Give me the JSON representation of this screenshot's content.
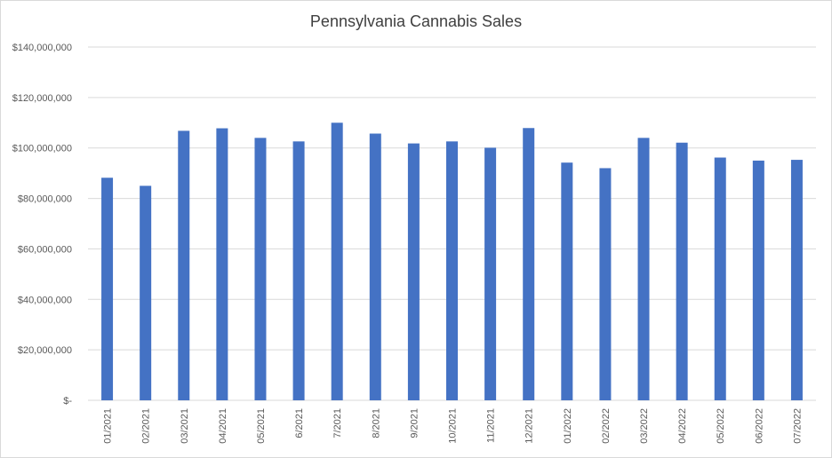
{
  "chart_data": {
    "type": "bar",
    "title": "Pennsylvania Cannabis Sales",
    "xlabel": "",
    "ylabel": "",
    "categories": [
      "01/2021",
      "02/2021",
      "03/2021",
      "04/2021",
      "05/2021",
      "6/2021",
      "7/2021",
      "8/2021",
      "9/2021",
      "10/2021",
      "11/2021",
      "12/2021",
      "01/2022",
      "02/2022",
      "03/2022",
      "04/2022",
      "05/2022",
      "06/2022",
      "07/2022"
    ],
    "values": [
      88200000,
      85000000,
      106800000,
      107800000,
      104000000,
      102600000,
      110000000,
      105700000,
      101800000,
      102600000,
      100100000,
      107900000,
      94200000,
      92000000,
      104000000,
      102100000,
      96200000,
      95000000,
      95300000
    ],
    "ylim": [
      0,
      140000000
    ],
    "yticks": [
      0,
      20000000,
      40000000,
      60000000,
      80000000,
      100000000,
      120000000,
      140000000
    ],
    "ytick_labels": [
      "$-",
      "$20,000,000",
      "$40,000,000",
      "$60,000,000",
      "$80,000,000",
      "$100,000,000",
      "$120,000,000",
      "$140,000,000"
    ],
    "grid": true,
    "legend": "none",
    "colors": {
      "bar": "#4472c4",
      "grid": "#d9d9d9",
      "text": "#595959",
      "title": "#404040"
    }
  }
}
